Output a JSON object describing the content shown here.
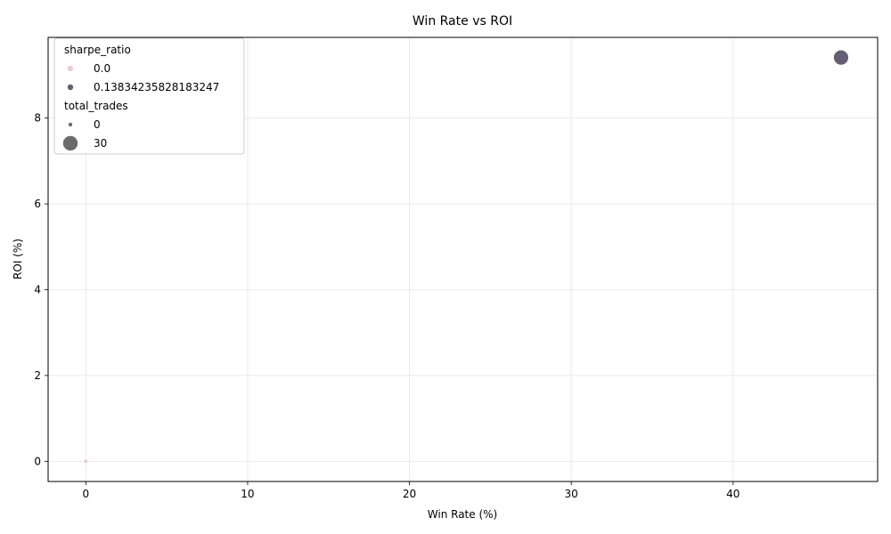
{
  "chart_data": {
    "type": "scatter",
    "title": "Win Rate vs ROI",
    "xlabel": "Win Rate (%)",
    "ylabel": "ROI (%)",
    "xlim": [
      -2.33,
      48.93
    ],
    "ylim": [
      -0.47,
      9.88
    ],
    "xticks": [
      0,
      10,
      20,
      30,
      40
    ],
    "yticks": [
      0,
      2,
      4,
      6,
      8
    ],
    "grid": true,
    "legend_position": "top-left",
    "points": [
      {
        "x": 0.0,
        "y": 0.0,
        "sharpe_ratio": 0.0,
        "total_trades": 0,
        "color": "#e8c4c8"
      },
      {
        "x": 46.67,
        "y": 9.41,
        "sharpe_ratio": 0.13834235828183247,
        "total_trades": 30,
        "color": "#4b425c"
      }
    ],
    "legend": {
      "hue_title": "sharpe_ratio",
      "hue_entries": [
        {
          "label": "0.0",
          "color": "#e8c4c8"
        },
        {
          "label": "0.13834235828183247",
          "color": "#4b425c"
        }
      ],
      "size_title": "total_trades",
      "size_entries": [
        {
          "label": "0",
          "radius": 2.5,
          "color": "#6b6b6b"
        },
        {
          "label": "30",
          "radius": 8.5,
          "color": "#6b6b6b"
        }
      ]
    }
  }
}
